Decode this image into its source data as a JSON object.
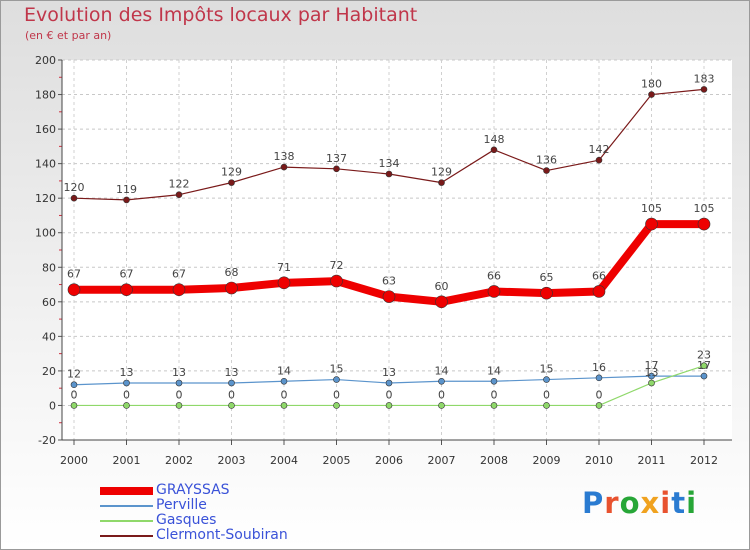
{
  "title": "Evolution des Impôts locaux par Habitant",
  "subtitle": "(en € et par an)",
  "logo": {
    "text": "Proxiti",
    "colors": [
      "#2a7bd1",
      "#e8522f",
      "#27a637",
      "#f0a21f",
      "#e8522f",
      "#2a7bd1",
      "#27a637"
    ]
  },
  "chart_data": {
    "type": "line",
    "categories": [
      "2000",
      "2001",
      "2002",
      "2003",
      "2004",
      "2005",
      "2006",
      "2007",
      "2008",
      "2009",
      "2010",
      "2011",
      "2012"
    ],
    "ylim": [
      -20,
      200
    ],
    "yticks": [
      "-20",
      "0",
      "20",
      "40",
      "60",
      "80",
      "100",
      "120",
      "140",
      "160",
      "180",
      "200"
    ],
    "grid": "horizontal dashed",
    "legend_position": "bottom-left",
    "series": [
      {
        "name": "Clermont-Soubiran",
        "color": "#7a1a1a",
        "values": [
          120,
          119,
          122,
          129,
          138,
          137,
          134,
          129,
          148,
          136,
          142,
          180,
          183
        ],
        "labels": [
          "120",
          "119",
          "122",
          "129",
          "138",
          "137",
          "134",
          "129",
          "148",
          "136",
          "142",
          "180",
          "183"
        ]
      },
      {
        "name": "GRAYSSAS",
        "color": "#ee0000",
        "values": [
          67,
          67,
          67,
          68,
          71,
          72,
          63,
          60,
          66,
          65,
          66,
          105,
          105
        ],
        "labels": [
          "67",
          "67",
          "67",
          "68",
          "71",
          "72",
          "63",
          "60",
          "66",
          "65",
          "66",
          "105",
          "105"
        ]
      },
      {
        "name": "Perville",
        "color": "#5b94cc",
        "values": [
          12,
          13,
          13,
          13,
          14,
          15,
          13,
          14,
          14,
          15,
          16,
          17,
          17
        ],
        "labels": [
          "12",
          "13",
          "13",
          "13",
          "14",
          "15",
          "13",
          "14",
          "14",
          "15",
          "16",
          "17",
          "17"
        ]
      },
      {
        "name": "Gasques",
        "color": "#8fd86a",
        "values": [
          0,
          0,
          0,
          0,
          0,
          0,
          0,
          0,
          0,
          0,
          0,
          13,
          23
        ],
        "labels": [
          "0",
          "0",
          "0",
          "0",
          "0",
          "0",
          "0",
          "0",
          "0",
          "0",
          "0",
          "13",
          "23"
        ]
      }
    ]
  },
  "legend": [
    {
      "label": "GRAYSSAS",
      "color": "#ee0000"
    },
    {
      "label": "Perville",
      "color": "#5b94cc"
    },
    {
      "label": "Gasques",
      "color": "#8fd86a"
    },
    {
      "label": "Clermont-Soubiran",
      "color": "#7a1a1a"
    }
  ]
}
